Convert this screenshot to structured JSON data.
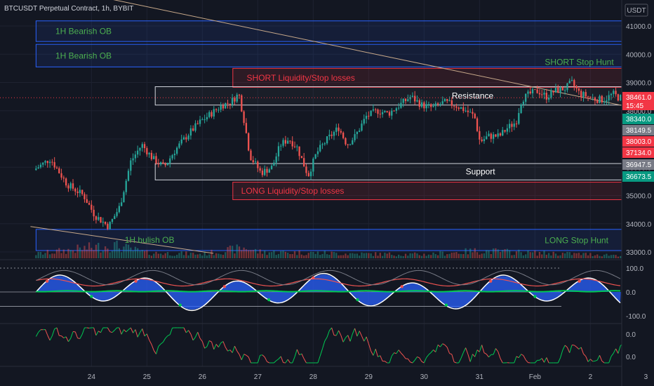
{
  "header": {
    "title": "BTCUSDT Perpetual Contract, 1h, BYBIT",
    "currency": "USDT"
  },
  "colors": {
    "background": "#131722",
    "bull": "#26a69a",
    "bear": "#ef5350",
    "ob_blue": "#2962ff",
    "liq_red": "#f23645",
    "green_text": "#4caf50",
    "trendline": "#c8a98a",
    "osc_blue": "#2962ff",
    "osc_green": "#00c853",
    "osc_red": "#ef5350",
    "osc_purple": "#9c27b0"
  },
  "chart_data": {
    "type": "candlestick",
    "symbol": "BTCUSDT Perpetual Contract",
    "interval": "1h",
    "exchange": "BYBIT",
    "price_axis": {
      "ylim": [
        32800,
        41500
      ],
      "ticks": [
        "41000.0",
        "40000.0",
        "39000.0",
        "38000.0",
        "37000.0",
        "36000.0",
        "35000.0",
        "34000.0",
        "33000.0"
      ]
    },
    "time_axis": {
      "ticks": [
        "24",
        "25",
        "26",
        "27",
        "28",
        "29",
        "30",
        "31",
        "Feb",
        "2",
        "3"
      ]
    },
    "price_path": [
      [
        23.0,
        35900
      ],
      [
        23.3,
        36300
      ],
      [
        23.6,
        35400
      ],
      [
        23.9,
        35000
      ],
      [
        24.1,
        34300
      ],
      [
        24.35,
        33900
      ],
      [
        24.55,
        34600
      ],
      [
        24.75,
        36200
      ],
      [
        24.95,
        36800
      ],
      [
        25.15,
        36300
      ],
      [
        25.35,
        36000
      ],
      [
        25.55,
        36600
      ],
      [
        25.8,
        37200
      ],
      [
        26.0,
        37600
      ],
      [
        26.2,
        37900
      ],
      [
        26.4,
        38200
      ],
      [
        26.55,
        38300
      ],
      [
        26.7,
        38600
      ],
      [
        26.8,
        37600
      ],
      [
        26.9,
        36400
      ],
      [
        27.0,
        36100
      ],
      [
        27.1,
        35800
      ],
      [
        27.3,
        36000
      ],
      [
        27.45,
        36800
      ],
      [
        27.6,
        37000
      ],
      [
        27.75,
        36700
      ],
      [
        27.85,
        36200
      ],
      [
        27.95,
        35700
      ],
      [
        28.1,
        36500
      ],
      [
        28.3,
        37000
      ],
      [
        28.5,
        37400
      ],
      [
        28.65,
        36800
      ],
      [
        28.8,
        37100
      ],
      [
        29.0,
        37800
      ],
      [
        29.2,
        38000
      ],
      [
        29.4,
        37900
      ],
      [
        29.6,
        38200
      ],
      [
        29.8,
        38500
      ],
      [
        30.0,
        38200
      ],
      [
        30.2,
        38100
      ],
      [
        30.4,
        38300
      ],
      [
        30.6,
        38200
      ],
      [
        30.8,
        38000
      ],
      [
        30.95,
        37800
      ],
      [
        31.05,
        36900
      ],
      [
        31.2,
        37100
      ],
      [
        31.4,
        37100
      ],
      [
        31.55,
        37400
      ],
      [
        31.7,
        37600
      ],
      [
        31.8,
        38400
      ],
      [
        31.95,
        38600
      ],
      [
        32.1,
        38700
      ],
      [
        32.25,
        38500
      ],
      [
        32.4,
        38700
      ],
      [
        32.6,
        38800
      ],
      [
        32.7,
        39000
      ],
      [
        32.85,
        38600
      ],
      [
        33.0,
        38500
      ],
      [
        33.15,
        38400
      ],
      [
        33.3,
        38400
      ],
      [
        33.45,
        38600
      ],
      [
        33.55,
        38461
      ]
    ],
    "volume_path": [
      [
        23.0,
        0.4
      ],
      [
        24.0,
        1.0
      ],
      [
        24.4,
        1.2
      ],
      [
        25.0,
        0.5
      ],
      [
        26.0,
        0.4
      ],
      [
        26.8,
        1.0
      ],
      [
        27.0,
        0.6
      ],
      [
        28.0,
        0.5
      ],
      [
        29.0,
        0.4
      ],
      [
        30.0,
        0.35
      ],
      [
        31.0,
        0.7
      ],
      [
        32.0,
        0.5
      ],
      [
        33.5,
        0.3
      ]
    ],
    "zones": [
      {
        "name": "1h-bearish-ob-upper",
        "type": "ob",
        "x0": 23.0,
        "x1": 33.85,
        "y0": 40450,
        "y1": 41180,
        "label": "1H Bearish OB",
        "label_x": 23.35
      },
      {
        "name": "1h-bearish-ob-lower",
        "type": "ob",
        "x0": 23.0,
        "x1": 33.85,
        "y0": 39550,
        "y1": 40350,
        "label": "1H Bearish OB",
        "label_x": 23.35
      },
      {
        "name": "short-liquidity-zone",
        "type": "liq",
        "x0": 26.55,
        "x1": 33.75,
        "y0": 38830,
        "y1": 39500,
        "label": "SHORT Liquidity/Stop losses",
        "label_x": 26.8
      },
      {
        "name": "resistance-zone",
        "type": "sr",
        "x0": 25.15,
        "x1": 33.75,
        "y0": 38200,
        "y1": 38850,
        "label": "Resistance",
        "label_x": 30.5
      },
      {
        "name": "support-zone",
        "type": "sr",
        "x0": 25.15,
        "x1": 33.75,
        "y0": 35550,
        "y1": 36130,
        "label": "Support",
        "label_x": 30.75
      },
      {
        "name": "long-liquidity-zone",
        "type": "liq",
        "x0": 26.55,
        "x1": 33.75,
        "y0": 34850,
        "y1": 35470,
        "label": "LONG Liquidity/Stop losses",
        "label_x": 26.7
      },
      {
        "name": "1h-bullish-ob",
        "type": "ob",
        "x0": 23.0,
        "x1": 33.8,
        "y0": 33050,
        "y1": 33800,
        "label": "1H bulish OB",
        "label_x": 24.6
      },
      {
        "name": "short-stop-hunt",
        "type": "text",
        "x": 32.8,
        "y": 39620,
        "label": "SHORT Stop Hunt"
      },
      {
        "name": "long-stop-hunt",
        "type": "text",
        "x": 32.75,
        "y": 33310,
        "label": "LONG Stop Hunt"
      }
    ],
    "trendlines": [
      {
        "name": "descending-trendline-upper",
        "x0": 23.0,
        "y0": 42500,
        "x1": 34.1,
        "y1": 37970
      },
      {
        "name": "trendline-lower",
        "x0": 22.9,
        "y0": 33900,
        "x1": 26.2,
        "y1": 32950
      }
    ],
    "price_badges": [
      {
        "text": "38461.0",
        "extra": "15:45",
        "value": 38461,
        "color": "#f23645"
      },
      {
        "text": "38340.0",
        "value": 38340,
        "color": "#089981"
      },
      {
        "text": "38149.5",
        "value": 38149.5,
        "color": "#787b86"
      },
      {
        "text": "38003.0",
        "value": 38003,
        "color": "#f23645"
      },
      {
        "text": "37134.0",
        "value": 37134,
        "color": "#f23645"
      },
      {
        "text": "36947.5",
        "value": 36947.5,
        "color": "#787b86"
      },
      {
        "text": "36673.5",
        "value": 36673.5,
        "color": "#089981"
      }
    ],
    "oscillator": {
      "ylim": [
        -130,
        130
      ],
      "ticks": [
        "100.0",
        "0.0",
        "-100.0"
      ],
      "levels": [
        100,
        0,
        -60
      ]
    },
    "lower_indicator": {
      "ylim": [
        -1,
        1
      ],
      "ticks": [
        "0.0",
        "0.0"
      ]
    }
  }
}
